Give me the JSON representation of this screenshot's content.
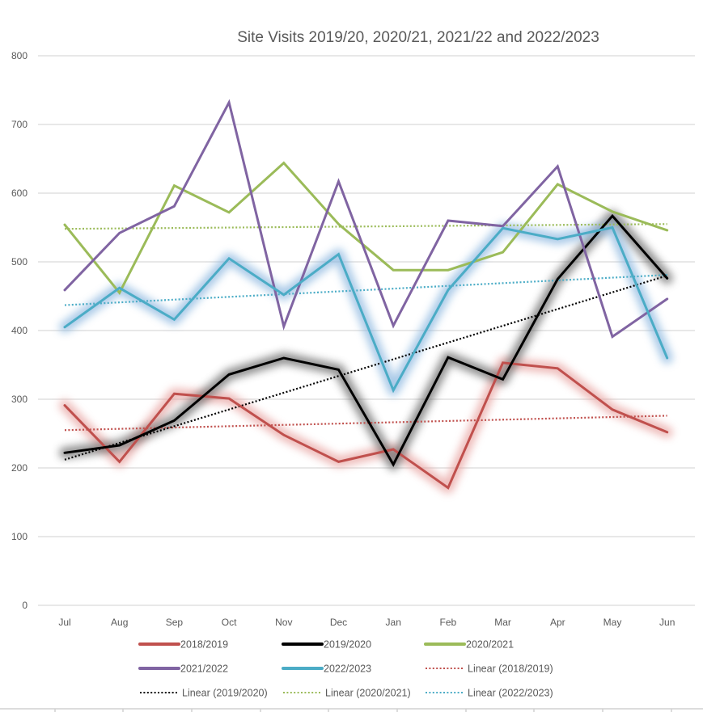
{
  "chart_data": {
    "type": "line",
    "title": "Site Visits 2019/20, 2020/21, 2021/22 and 2022/2023",
    "xlabel": "",
    "ylabel": "",
    "categories": [
      "Jul",
      "Aug",
      "Sep",
      "Oct",
      "Nov",
      "Dec",
      "Jan",
      "Feb",
      "Mar",
      "Apr",
      "May",
      "Jun"
    ],
    "ylim": [
      0,
      800
    ],
    "yticks": [
      0,
      100,
      200,
      300,
      400,
      500,
      600,
      700,
      800
    ],
    "ytick_labels": [
      "0",
      "100",
      "200",
      "300",
      "400",
      "500",
      "600",
      "700",
      "800"
    ],
    "grid": true,
    "legend_position": "bottom",
    "series": [
      {
        "name": "2018/2019",
        "color": "#C0504D",
        "glow": true,
        "values": [
          291,
          209,
          308,
          301,
          248,
          209,
          227,
          171,
          353,
          345,
          285,
          252
        ]
      },
      {
        "name": "2019/2020",
        "color": "#000000",
        "glow": true,
        "values": [
          222,
          233,
          269,
          336,
          360,
          343,
          205,
          361,
          329,
          475,
          567,
          476
        ]
      },
      {
        "name": "2020/2021",
        "color": "#9BBB59",
        "glow": false,
        "values": [
          554,
          455,
          611,
          572,
          644,
          555,
          488,
          488,
          514,
          613,
          573,
          546
        ]
      },
      {
        "name": "2021/2022",
        "color": "#8064A2",
        "glow": false,
        "values": [
          459,
          542,
          581,
          732,
          406,
          617,
          407,
          560,
          552,
          639,
          391,
          446
        ]
      },
      {
        "name": "2022/2023",
        "color": "#4BACC6",
        "glow": true,
        "values": [
          405,
          462,
          416,
          505,
          452,
          511,
          313,
          459,
          549,
          533,
          550,
          360
        ]
      }
    ],
    "trendlines": [
      {
        "name": "Linear (2018/2019)",
        "color": "#C0504D",
        "start": 255,
        "end": 276
      },
      {
        "name": "Linear (2019/2020)",
        "color": "#000000",
        "start": 212,
        "end": 480
      },
      {
        "name": "Linear (2020/2021)",
        "color": "#9BBB59",
        "start": 548,
        "end": 555
      },
      {
        "name": "Linear (2022/2023)",
        "color": "#4BACC6",
        "start": 437,
        "end": 481
      }
    ],
    "legend": [
      {
        "label": "2018/2019",
        "color": "#C0504D",
        "style": "solid"
      },
      {
        "label": "2019/2020",
        "color": "#000000",
        "style": "solid"
      },
      {
        "label": "2020/2021",
        "color": "#9BBB59",
        "style": "solid"
      },
      {
        "label": "2021/2022",
        "color": "#8064A2",
        "style": "solid"
      },
      {
        "label": "2022/2023",
        "color": "#4BACC6",
        "style": "solid"
      },
      {
        "label": "Linear (2018/2019)",
        "color": "#C0504D",
        "style": "dotted"
      },
      {
        "label": "Linear (2019/2020)",
        "color": "#000000",
        "style": "dotted"
      },
      {
        "label": "Linear (2020/2021)",
        "color": "#9BBB59",
        "style": "dotted"
      },
      {
        "label": "Linear (2022/2023)",
        "color": "#4BACC6",
        "style": "dotted"
      }
    ]
  }
}
